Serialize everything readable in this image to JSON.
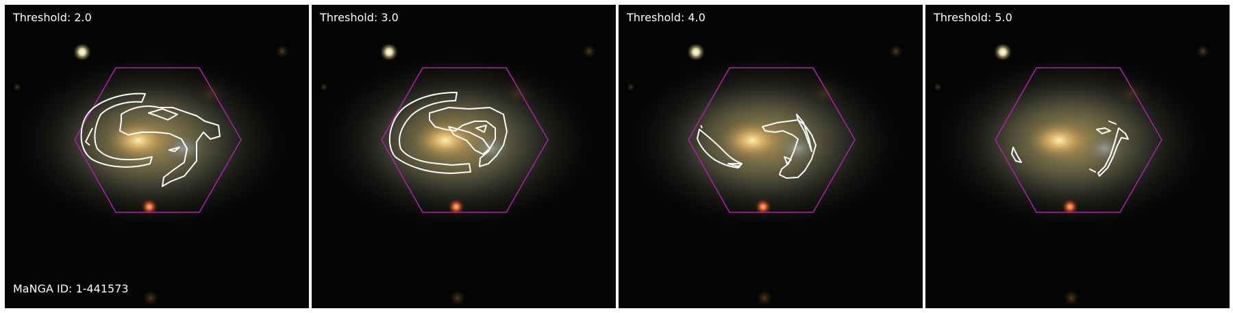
{
  "figure": {
    "panels": [
      {
        "threshold_label": "Threshold: 2.0"
      },
      {
        "threshold_label": "Threshold: 3.0"
      },
      {
        "threshold_label": "Threshold: 4.0"
      },
      {
        "threshold_label": "Threshold: 5.0"
      }
    ],
    "manga_id_label": "MaNGA ID: 1-441573"
  },
  "colors": {
    "background": "#040404",
    "hexagon": "#b020b0",
    "contour": "#ffffff",
    "galaxy_core": "#e8c070",
    "galaxy_halo": "#6a7060",
    "star_white": "#fff6c8",
    "star_red": "#ff6a30"
  },
  "icons": [
    "galaxy-image",
    "ifu-hexagon",
    "contour-lines"
  ]
}
